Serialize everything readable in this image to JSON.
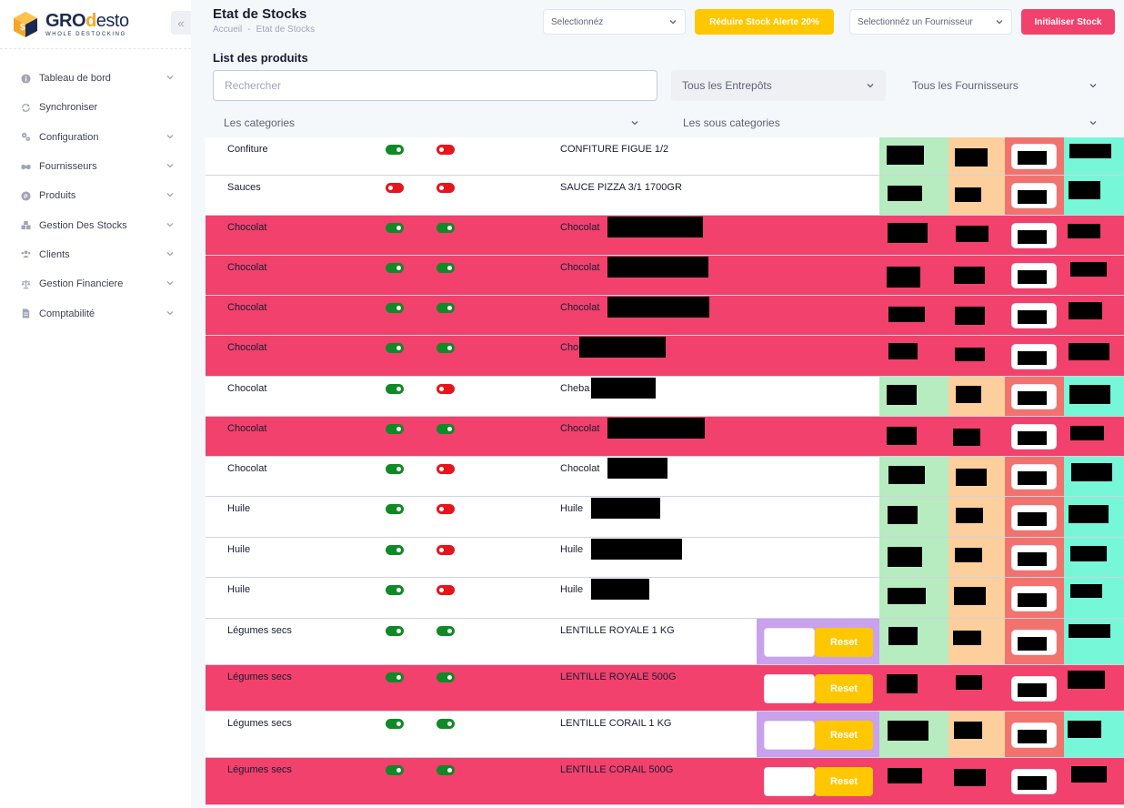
{
  "brand": {
    "logo_gro": "GRO",
    "logo_d": "d",
    "logo_esto": "esto",
    "tagline": "WHOLE DESTOCKING",
    "colors": {
      "navy": "#1b2a52",
      "orange": "#f5a623"
    }
  },
  "sidebar": {
    "collapse_icon": "double-chevron-left-icon",
    "items": [
      {
        "label": "Tableau de bord",
        "icon": "info-circle-icon",
        "has_chevron": true
      },
      {
        "label": "Synchroniser",
        "icon": "sync-icon",
        "has_chevron": false
      },
      {
        "label": "Configuration",
        "icon": "gears-icon",
        "has_chevron": true
      },
      {
        "label": "Fournisseurs",
        "icon": "handshake-icon",
        "has_chevron": true
      },
      {
        "label": "Produits",
        "icon": "product-circle-icon",
        "has_chevron": true
      },
      {
        "label": "Gestion Des Stocks",
        "icon": "boxes-icon",
        "has_chevron": true
      },
      {
        "label": "Clients",
        "icon": "users-icon",
        "has_chevron": true
      },
      {
        "label": "Gestion Financiere",
        "icon": "balance-icon",
        "has_chevron": true
      },
      {
        "label": "Comptabilité",
        "icon": "document-icon",
        "has_chevron": true
      }
    ]
  },
  "header": {
    "title": "Etat de Stocks",
    "breadcrumb": [
      "Accueil",
      "-",
      "Etat de Stocks"
    ],
    "select_1": "Selectionnéz",
    "reduce_button": "Réduire Stock Alerte 20%",
    "supplier_select": "Selectionnéz un Fournisseur",
    "init_button": "Initialiser Stock"
  },
  "list": {
    "title": "List des produits",
    "search_placeholder": "Rechercher",
    "filters": {
      "warehouses": "Tous les Entrepôts",
      "suppliers": "Tous les Fournisseurs",
      "categories": "Les categories",
      "subcategories": "Les sous categories"
    },
    "reset_label": "Reset"
  },
  "colors": {
    "row_alert": "#f1416c",
    "toggle_on": "#0f8a26",
    "toggle_off": "#e8141c",
    "col_green": "#b6ecbf",
    "col_orange": "#fdcf9c",
    "col_red": "#f2736e",
    "col_cyan": "#76f7d8",
    "col_purple": "#c9a1ec",
    "btn_yellow": "#ffc700",
    "btn_red": "#f1416c"
  },
  "rows": [
    {
      "category": "Confiture",
      "toggle1": true,
      "toggle2": false,
      "product": "CONFITURE FIGUE 1/2",
      "alert": false,
      "reset": false
    },
    {
      "category": "Sauces",
      "toggle1": false,
      "toggle2": false,
      "product": "SAUCE PIZZA 3/1 1700GR",
      "alert": false,
      "reset": false
    },
    {
      "category": "Chocolat",
      "toggle1": true,
      "toggle2": true,
      "product": "Chocolat",
      "alert": true,
      "reset": false
    },
    {
      "category": "Chocolat",
      "toggle1": true,
      "toggle2": true,
      "product": "Chocolat",
      "alert": true,
      "reset": false
    },
    {
      "category": "Chocolat",
      "toggle1": true,
      "toggle2": true,
      "product": "Chocolat",
      "alert": true,
      "reset": false
    },
    {
      "category": "Chocolat",
      "toggle1": true,
      "toggle2": true,
      "product": "Cho",
      "alert": true,
      "reset": false
    },
    {
      "category": "Chocolat",
      "toggle1": true,
      "toggle2": false,
      "product": "Cheba",
      "alert": false,
      "reset": false
    },
    {
      "category": "Chocolat",
      "toggle1": true,
      "toggle2": true,
      "product": "Chocolat",
      "alert": true,
      "reset": false
    },
    {
      "category": "Chocolat",
      "toggle1": true,
      "toggle2": false,
      "product": "Chocolat",
      "alert": false,
      "reset": false
    },
    {
      "category": "Huile",
      "toggle1": true,
      "toggle2": false,
      "product": "Huile",
      "alert": false,
      "reset": false
    },
    {
      "category": "Huile",
      "toggle1": true,
      "toggle2": false,
      "product": "Huile",
      "alert": false,
      "reset": false
    },
    {
      "category": "Huile",
      "toggle1": true,
      "toggle2": false,
      "product": "Huile",
      "alert": false,
      "reset": false
    },
    {
      "category": "Légumes secs",
      "toggle1": true,
      "toggle2": true,
      "product": "LENTILLE ROYALE 1 KG",
      "alert": false,
      "reset": true
    },
    {
      "category": "Légumes secs",
      "toggle1": true,
      "toggle2": true,
      "product": "LENTILLE ROYALE 500G",
      "alert": true,
      "reset": true
    },
    {
      "category": "Légumes secs",
      "toggle1": true,
      "toggle2": true,
      "product": "LENTILLE CORAIL 1 KG",
      "alert": false,
      "reset": true
    },
    {
      "category": "Légumes secs",
      "toggle1": true,
      "toggle2": true,
      "product": "LENTILLE CORAIL 500G",
      "alert": true,
      "reset": true
    }
  ]
}
